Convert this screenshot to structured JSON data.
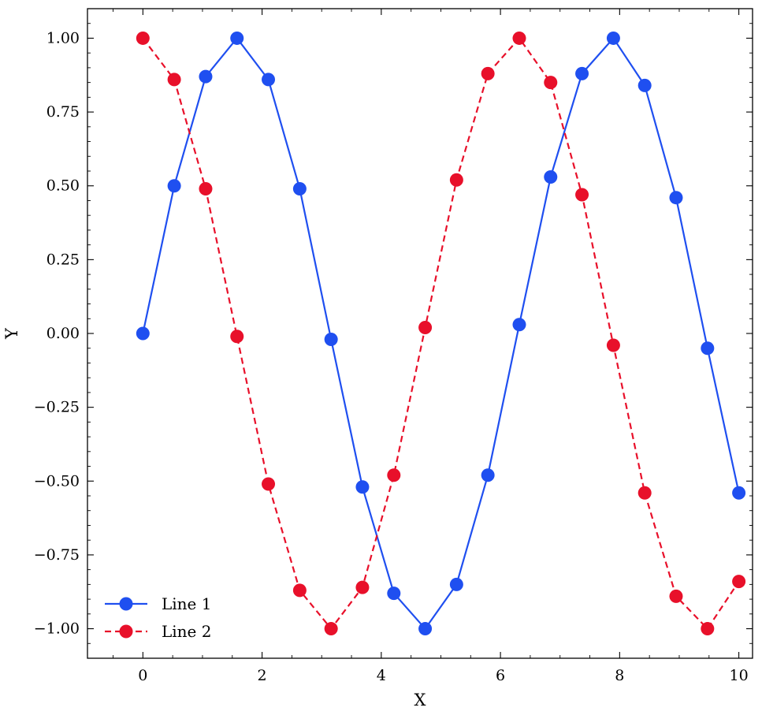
{
  "chart_data": {
    "type": "line",
    "title": "",
    "xlabel": "X",
    "ylabel": "Y",
    "xlim": [
      -0.93,
      10.23
    ],
    "ylim": [
      -1.1,
      1.1
    ],
    "x_ticks": [
      0,
      2,
      4,
      6,
      8,
      10
    ],
    "x_tick_labels": [
      "0",
      "2",
      "4",
      "6",
      "8",
      "10"
    ],
    "y_ticks": [
      1.0,
      0.75,
      0.5,
      0.25,
      0.0,
      -0.25,
      -0.5,
      -0.75,
      -1.0
    ],
    "y_tick_labels": [
      "1.00",
      "0.75",
      "0.50",
      "0.25",
      "0.00",
      "−0.25",
      "−0.50",
      "−0.75",
      "−1.00"
    ],
    "grid": false,
    "legend_position": "lower-left",
    "x": [
      0,
      0.526,
      1.053,
      1.579,
      2.105,
      2.632,
      3.158,
      3.684,
      4.211,
      4.737,
      5.263,
      5.789,
      6.316,
      6.842,
      7.368,
      7.895,
      8.421,
      8.947,
      9.474,
      10.0
    ],
    "series": [
      {
        "name": "Line 1",
        "color": "#1f4ff0",
        "line_style": "solid",
        "marker": "circle",
        "values": [
          0.0,
          0.5,
          0.87,
          1.0,
          0.86,
          0.49,
          -0.02,
          -0.52,
          -0.88,
          -1.0,
          -0.85,
          -0.48,
          0.03,
          0.53,
          0.88,
          1.0,
          0.84,
          0.46,
          -0.05,
          -0.54
        ]
      },
      {
        "name": "Line 2",
        "color": "#e8102a",
        "line_style": "dashed",
        "marker": "circle",
        "values": [
          1.0,
          0.86,
          0.49,
          -0.01,
          -0.51,
          -0.87,
          -1.0,
          -0.86,
          -0.48,
          0.02,
          0.52,
          0.88,
          1.0,
          0.85,
          0.47,
          -0.04,
          -0.54,
          -0.89,
          -1.0,
          -0.84
        ]
      }
    ]
  }
}
